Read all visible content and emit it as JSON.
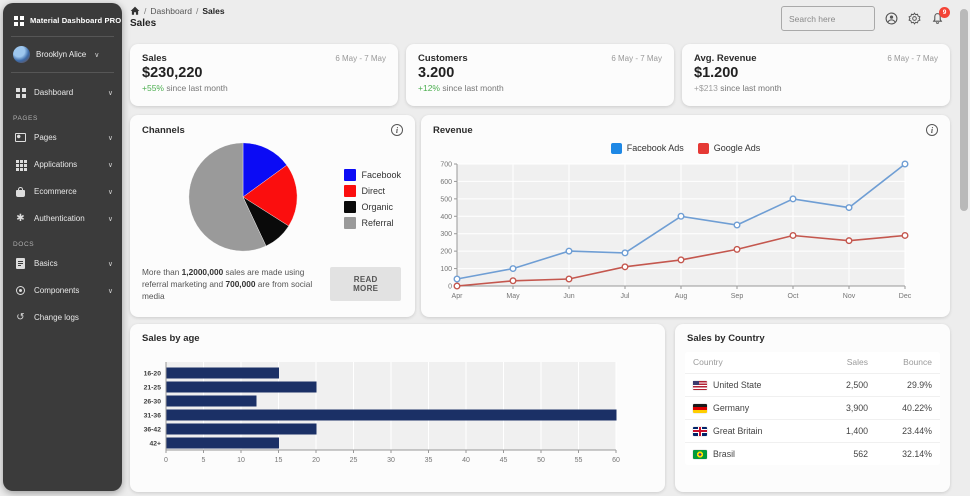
{
  "sidebar": {
    "brand": "Material Dashboard PRO",
    "user_name": "Brooklyn Alice",
    "section_pages": "PAGES",
    "section_docs": "DOCS",
    "items": [
      {
        "label": "Dashboard"
      },
      {
        "label": "Pages"
      },
      {
        "label": "Applications"
      },
      {
        "label": "Ecommerce"
      },
      {
        "label": "Authentication"
      },
      {
        "label": "Basics"
      },
      {
        "label": "Components"
      },
      {
        "label": "Change logs"
      }
    ],
    "chevron": "∨"
  },
  "header": {
    "breadcrumb": {
      "sep": "/",
      "root": "Dashboard",
      "current": "Sales"
    },
    "page_title": "Sales",
    "search_placeholder": "Search here",
    "notification_count": "9",
    "badge_color": "#f44336"
  },
  "stat_cards": [
    {
      "title": "Sales",
      "value": "$230,220",
      "delta": "+55%",
      "delta_color": "#4caf50",
      "delta_suffix": " since last month",
      "period": "6 May - 7 May"
    },
    {
      "title": "Customers",
      "value": "3.200",
      "delta": "+12%",
      "delta_color": "#4caf50",
      "delta_suffix": " since last month",
      "period": "6 May - 7 May"
    },
    {
      "title": "Avg. Revenue",
      "value": "$1.200",
      "delta": "+$213",
      "delta_color": "#9e9e9e",
      "delta_suffix": " since last month",
      "period": "6 May - 7 May"
    }
  ],
  "channels": {
    "title": "Channels",
    "note": {
      "t1": "More than ",
      "b1": "1,2000,000",
      "t2": " sales are made using referral marketing and ",
      "b2": "700,000",
      "t3": " are from social media"
    },
    "read_more": "READ MORE"
  },
  "revenue": {
    "title": "Revenue"
  },
  "sales_by_age": {
    "title": "Sales by age"
  },
  "country_table": {
    "title": "Sales by Country",
    "columns": [
      "Country",
      "Sales",
      "Bounce"
    ],
    "rows": [
      {
        "country": "United State",
        "sales": "2,500",
        "bounce": "29.9%"
      },
      {
        "country": "Germany",
        "sales": "3,900",
        "bounce": "40.22%"
      },
      {
        "country": "Great Britain",
        "sales": "1,400",
        "bounce": "23.44%"
      },
      {
        "country": "Brasil",
        "sales": "562",
        "bounce": "32.14%"
      }
    ]
  },
  "chart_data": [
    {
      "id": "channels",
      "type": "pie",
      "title": "Channels",
      "labels": [
        "Facebook",
        "Direct",
        "Organic",
        "Referral"
      ],
      "values": [
        15,
        19,
        9,
        57
      ],
      "colors": [
        "#0b0bf5",
        "#fb0e0e",
        "#0a0a0a",
        "#9a9a9a"
      ],
      "legend_position": "right"
    },
    {
      "id": "revenue",
      "type": "line",
      "title": "Revenue",
      "x": [
        "Apr",
        "May",
        "Jun",
        "Jul",
        "Aug",
        "Sep",
        "Oct",
        "Nov",
        "Dec"
      ],
      "series": [
        {
          "name": "Facebook Ads",
          "legend_color": "#1e88e5",
          "line_color": "#6f9ed4",
          "values": [
            40,
            100,
            200,
            190,
            400,
            350,
            500,
            450,
            700
          ]
        },
        {
          "name": "Google Ads",
          "legend_color": "#e53935",
          "line_color": "#c4574e",
          "values": [
            0,
            30,
            40,
            110,
            150,
            210,
            290,
            260,
            290
          ]
        }
      ],
      "ylim": [
        0,
        700
      ],
      "yticks": [
        0,
        100,
        200,
        300,
        400,
        500,
        600,
        700
      ],
      "grid": true,
      "legend_position": "top"
    },
    {
      "id": "sales_by_age",
      "type": "bar",
      "orientation": "horizontal",
      "title": "Sales by age",
      "categories": [
        "16-20",
        "21-25",
        "26-30",
        "31-36",
        "36-42",
        "42+"
      ],
      "values": [
        15,
        20,
        12,
        60,
        20,
        15
      ],
      "color": "#1b3066",
      "xlim": [
        0,
        60
      ],
      "xticks": [
        0,
        5,
        10,
        15,
        20,
        25,
        30,
        35,
        40,
        45,
        50,
        55,
        60
      ],
      "grid": true
    }
  ]
}
